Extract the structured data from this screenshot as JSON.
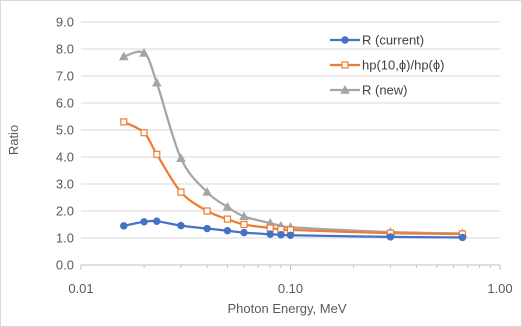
{
  "chart_data": {
    "type": "line",
    "title": "",
    "xlabel": "Photon Energy, MeV",
    "ylabel": "Ratio",
    "x_scale": "log",
    "xlim": [
      0.01,
      1.0
    ],
    "ylim": [
      0.0,
      9.0
    ],
    "x_ticks": [
      "0.01",
      "0.10",
      "1.00"
    ],
    "y_ticks": [
      "0.0",
      "1.0",
      "2.0",
      "3.0",
      "4.0",
      "5.0",
      "6.0",
      "7.0",
      "8.0",
      "9.0"
    ],
    "grid": "horizontal",
    "legend_position": "top-right",
    "series": [
      {
        "name": "R (current)",
        "color": "#4472C4",
        "marker": "circle",
        "x": [
          0.016,
          0.02,
          0.023,
          0.03,
          0.04,
          0.05,
          0.06,
          0.08,
          0.09,
          0.1,
          0.3,
          0.662
        ],
        "y": [
          1.45,
          1.6,
          1.62,
          1.46,
          1.35,
          1.27,
          1.2,
          1.14,
          1.12,
          1.1,
          1.04,
          1.02
        ]
      },
      {
        "name": "hp(10,ϕ)/hp(ϕ)",
        "color": "#ED7D31",
        "marker": "square-open",
        "x": [
          0.016,
          0.02,
          0.023,
          0.03,
          0.04,
          0.05,
          0.06,
          0.08,
          0.09,
          0.1,
          0.3,
          0.662
        ],
        "y": [
          5.3,
          4.9,
          4.1,
          2.7,
          2.0,
          1.7,
          1.5,
          1.37,
          1.32,
          1.3,
          1.18,
          1.15
        ]
      },
      {
        "name": "R (new)",
        "color": "#A5A5A5",
        "marker": "triangle",
        "x": [
          0.016,
          0.02,
          0.023,
          0.03,
          0.04,
          0.05,
          0.06,
          0.08,
          0.09,
          0.1,
          0.3,
          0.662
        ],
        "y": [
          7.72,
          7.85,
          6.75,
          3.95,
          2.7,
          2.15,
          1.8,
          1.55,
          1.45,
          1.4,
          1.22,
          1.17
        ]
      }
    ]
  }
}
